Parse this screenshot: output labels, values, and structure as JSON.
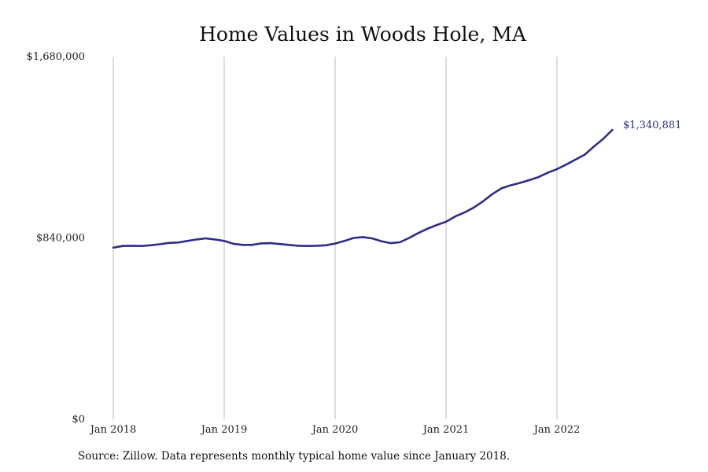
{
  "colors": {
    "line": "#2e2d88",
    "grid": "#bbbbbb"
  },
  "chart_data": {
    "type": "line",
    "title": "Home Values in Woods Hole, MA",
    "xlabel": "",
    "ylabel": "",
    "ylim": [
      0,
      1680000
    ],
    "y_ticks": [
      {
        "value": 0,
        "label": "$0"
      },
      {
        "value": 840000,
        "label": "$840,000"
      },
      {
        "value": 1680000,
        "label": "$1,680,000"
      }
    ],
    "x_ticks": [
      {
        "value": "2018-01",
        "label": "Jan 2018"
      },
      {
        "value": "2019-01",
        "label": "Jan 2019"
      },
      {
        "value": "2020-01",
        "label": "Jan 2020"
      },
      {
        "value": "2021-01",
        "label": "Jan 2021"
      },
      {
        "value": "2022-01",
        "label": "Jan 2022"
      }
    ],
    "x_range": [
      "2018-01",
      "2023-01"
    ],
    "grid": "vertical",
    "end_label": "$1,340,881",
    "series": [
      {
        "x": [
          "2018-01",
          "2018-02",
          "2018-03",
          "2018-04",
          "2018-05",
          "2018-06",
          "2018-07",
          "2018-08",
          "2018-09",
          "2018-10",
          "2018-11",
          "2018-12",
          "2019-01",
          "2019-02",
          "2019-03",
          "2019-04",
          "2019-05",
          "2019-06",
          "2019-07",
          "2019-08",
          "2019-09",
          "2019-10",
          "2019-11",
          "2019-12",
          "2020-01",
          "2020-02",
          "2020-03",
          "2020-04",
          "2020-05",
          "2020-06",
          "2020-07",
          "2020-08",
          "2020-09",
          "2020-10",
          "2020-11",
          "2020-12",
          "2021-01",
          "2021-02",
          "2021-03",
          "2021-04",
          "2021-05",
          "2021-06",
          "2021-07",
          "2021-08",
          "2021-09",
          "2021-10",
          "2021-11",
          "2021-12",
          "2022-01",
          "2022-02",
          "2022-03",
          "2022-04",
          "2022-05",
          "2022-06",
          "2022-07"
        ],
        "y": [
          795000,
          803000,
          804000,
          803000,
          806000,
          811000,
          817000,
          819000,
          826000,
          833000,
          838000,
          833000,
          826000,
          813000,
          808000,
          808000,
          815000,
          816000,
          812000,
          808000,
          804000,
          803000,
          804000,
          806000,
          814000,
          826000,
          840000,
          844000,
          838000,
          825000,
          816000,
          820000,
          840000,
          863000,
          883000,
          900000,
          915000,
          940000,
          958000,
          981000,
          1010000,
          1043000,
          1070000,
          1084000,
          1095000,
          1108000,
          1122000,
          1142000,
          1159000,
          1180000,
          1203000,
          1226000,
          1264000,
          1299000,
          1340881
        ]
      }
    ]
  },
  "source": "Source: Zillow. Data represents monthly typical home value since January 2018."
}
